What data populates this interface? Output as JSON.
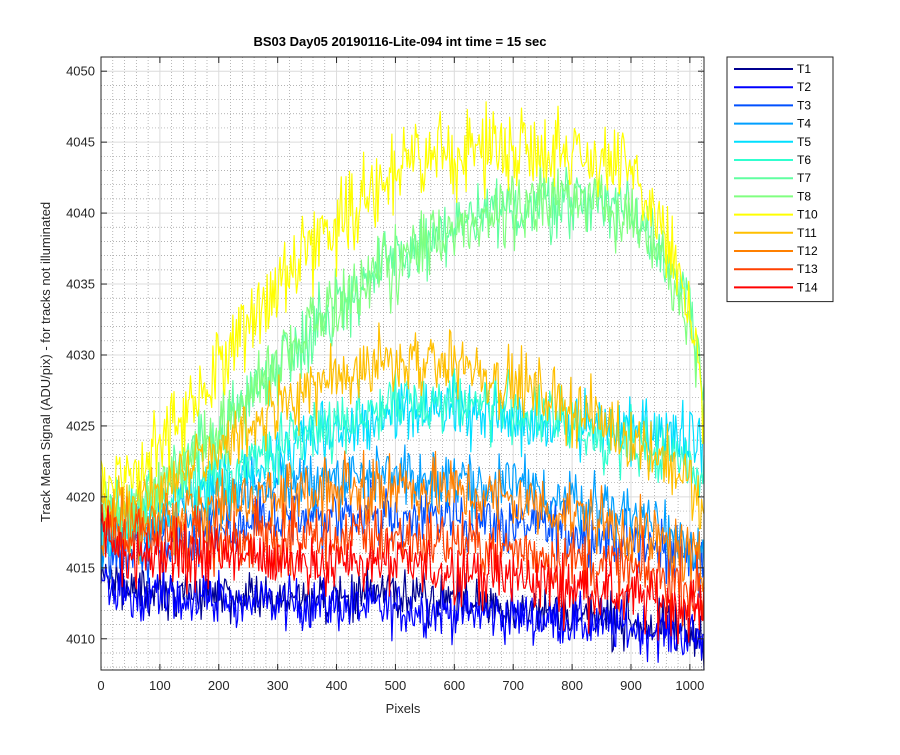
{
  "chart_data": {
    "type": "line",
    "title": "BS03 Day05 20190116-Lite-094 int time = 15 sec",
    "xlabel": "Pixels",
    "ylabel": "Track Mean Signal (ADU/pix) - for tracks not illuminated",
    "xlim": [
      0,
      1024
    ],
    "ylim": [
      4007.8,
      4051.0
    ],
    "x_ticks": [
      0,
      100,
      200,
      300,
      400,
      500,
      600,
      700,
      800,
      900,
      1000
    ],
    "y_ticks": [
      4010,
      4015,
      4020,
      4025,
      4030,
      4035,
      4040,
      4045,
      4050
    ],
    "grid": true,
    "minor_grid": true,
    "legend_position": "outside-top-right",
    "x": [
      0,
      50,
      100,
      150,
      200,
      250,
      300,
      350,
      400,
      450,
      500,
      550,
      600,
      650,
      700,
      750,
      800,
      850,
      900,
      950,
      1000,
      1023
    ],
    "series": [
      {
        "name": "T1",
        "color": "#00008f",
        "values": [
          4014.5,
          4013.5,
          4013.0,
          4013.0,
          4013.0,
          4013.0,
          4013.0,
          4013.0,
          4013.0,
          4013.0,
          4013.0,
          4013.0,
          4012.8,
          4012.5,
          4012.2,
          4012.0,
          4011.8,
          4011.5,
          4011.2,
          4010.8,
          4010.5,
          4010.0
        ]
      },
      {
        "name": "T2",
        "color": "#0000ff",
        "values": [
          4014.0,
          4013.0,
          4012.8,
          4012.8,
          4012.8,
          4012.6,
          4012.5,
          4012.4,
          4012.3,
          4012.2,
          4012.1,
          4012.0,
          4011.9,
          4011.8,
          4011.6,
          4011.4,
          4011.2,
          4011.0,
          4010.8,
          4010.5,
          4010.2,
          4009.8
        ]
      },
      {
        "name": "T3",
        "color": "#0050ff",
        "values": [
          4016.5,
          4016.0,
          4016.5,
          4017.0,
          4017.5,
          4018.0,
          4018.3,
          4018.5,
          4018.6,
          4018.7,
          4018.7,
          4018.6,
          4018.5,
          4018.3,
          4018.0,
          4017.8,
          4017.5,
          4017.2,
          4016.8,
          4016.3,
          4015.8,
          4015.0
        ]
      },
      {
        "name": "T4",
        "color": "#009fff",
        "values": [
          4017.5,
          4017.5,
          4018.0,
          4018.8,
          4019.5,
          4020.2,
          4020.8,
          4021.2,
          4021.5,
          4021.6,
          4021.6,
          4021.5,
          4021.3,
          4021.0,
          4020.6,
          4020.2,
          4019.8,
          4019.3,
          4018.8,
          4018.0,
          4017.2,
          4016.0
        ]
      },
      {
        "name": "T5",
        "color": "#00dfff",
        "values": [
          4018.0,
          4018.0,
          4019.0,
          4020.0,
          4021.0,
          4022.0,
          4023.0,
          4024.0,
          4024.8,
          4025.4,
          4025.8,
          4026.0,
          4026.0,
          4025.9,
          4025.7,
          4025.4,
          4025.1,
          4024.8,
          4024.7,
          4024.6,
          4024.3,
          4023.5
        ]
      },
      {
        "name": "T6",
        "color": "#30ffcf",
        "values": [
          4018.5,
          4018.5,
          4019.5,
          4020.5,
          4021.5,
          4022.5,
          4023.5,
          4024.5,
          4025.3,
          4026.0,
          4026.5,
          4026.8,
          4026.8,
          4026.6,
          4026.2,
          4025.6,
          4025.0,
          4024.2,
          4023.5,
          4023.0,
          4022.5,
          4021.5
        ]
      },
      {
        "name": "T7",
        "color": "#60ffa0",
        "values": [
          4019.0,
          4019.0,
          4020.5,
          4022.5,
          4024.5,
          4027.0,
          4029.5,
          4031.5,
          4033.5,
          4035.2,
          4036.6,
          4037.8,
          4038.8,
          4039.6,
          4040.2,
          4040.7,
          4041.0,
          4041.0,
          4040.2,
          4038.0,
          4033.0,
          4027.0
        ]
      },
      {
        "name": "T8",
        "color": "#80ff80",
        "values": [
          4019.0,
          4019.2,
          4020.5,
          4022.6,
          4024.6,
          4027.2,
          4029.6,
          4031.6,
          4033.6,
          4035.3,
          4036.7,
          4037.9,
          4038.9,
          4039.7,
          4040.3,
          4040.8,
          4041.1,
          4041.0,
          4040.0,
          4037.5,
          4032.5,
          4026.5
        ]
      },
      {
        "name": "T10",
        "color": "#ffff00",
        "values": [
          4021.0,
          4021.5,
          4023.5,
          4026.5,
          4029.5,
          4032.5,
          4035.0,
          4037.5,
          4039.5,
          4041.3,
          4042.8,
          4043.8,
          4044.3,
          4044.6,
          4044.7,
          4044.7,
          4044.4,
          4043.8,
          4042.5,
          4039.5,
          4033.0,
          4026.0
        ]
      },
      {
        "name": "T11",
        "color": "#ffbf00",
        "values": [
          4019.5,
          4019.5,
          4020.5,
          4022.0,
          4023.5,
          4025.0,
          4026.3,
          4027.4,
          4028.3,
          4029.0,
          4029.5,
          4029.6,
          4029.4,
          4028.8,
          4028.0,
          4027.2,
          4026.3,
          4025.3,
          4024.2,
          4023.0,
          4021.0,
          4018.5
        ]
      },
      {
        "name": "T12",
        "color": "#ff8000",
        "values": [
          4018.5,
          4018.0,
          4018.3,
          4018.8,
          4019.2,
          4019.7,
          4020.1,
          4020.4,
          4020.6,
          4020.7,
          4020.7,
          4020.6,
          4020.4,
          4020.1,
          4019.7,
          4019.3,
          4018.8,
          4018.2,
          4017.6,
          4016.8,
          4015.8,
          4014.5
        ]
      },
      {
        "name": "T13",
        "color": "#ff4000",
        "values": [
          4017.5,
          4016.8,
          4016.8,
          4016.9,
          4017.0,
          4017.1,
          4017.2,
          4017.2,
          4017.2,
          4017.2,
          4017.1,
          4017.0,
          4016.8,
          4016.6,
          4016.3,
          4016.0,
          4015.6,
          4015.2,
          4014.8,
          4014.3,
          4013.7,
          4013.0
        ]
      },
      {
        "name": "T14",
        "color": "#ff0000",
        "values": [
          4017.0,
          4016.0,
          4015.8,
          4015.8,
          4015.8,
          4015.7,
          4015.6,
          4015.5,
          4015.4,
          4015.3,
          4015.2,
          4015.0,
          4014.8,
          4014.6,
          4014.3,
          4014.0,
          4013.7,
          4013.4,
          4013.0,
          4012.6,
          4012.2,
          4011.8
        ]
      }
    ]
  }
}
